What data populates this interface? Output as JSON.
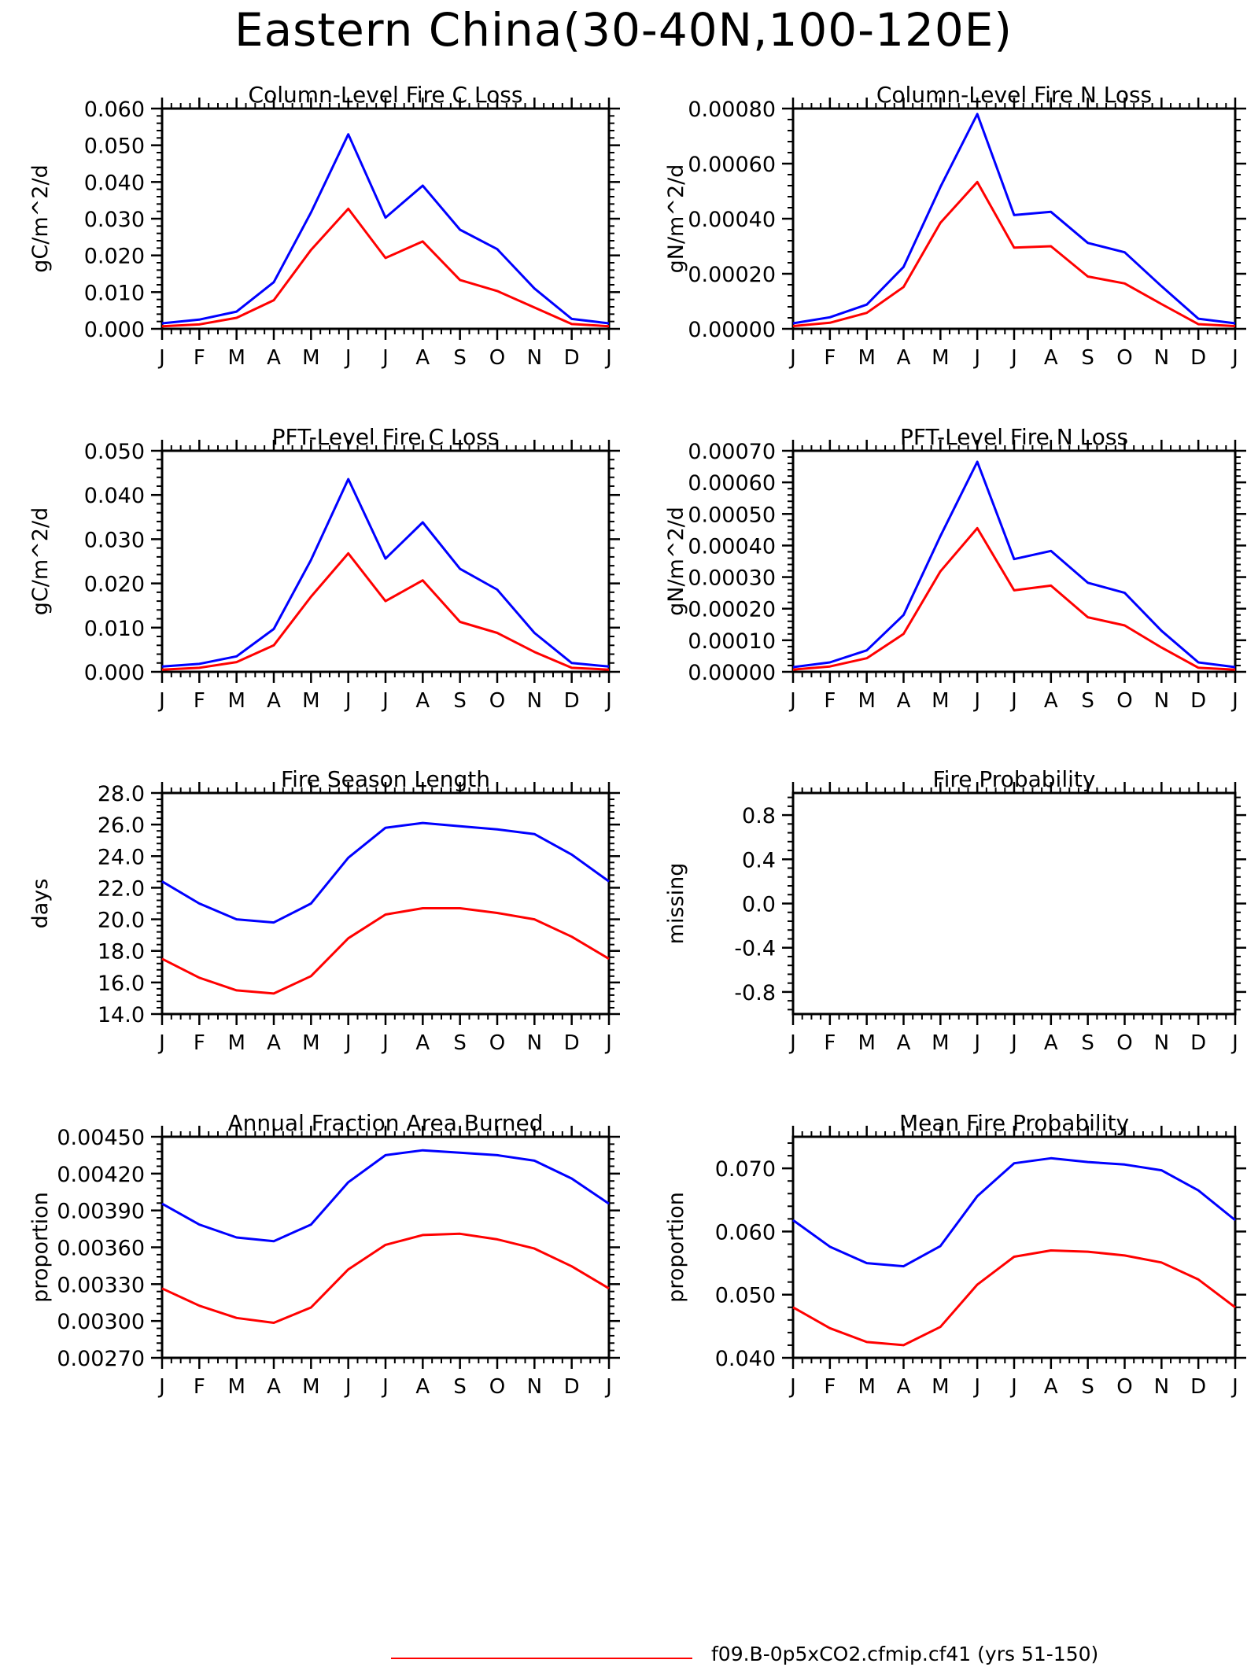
{
  "page_title": "Eastern China(30-40N,100-120E)",
  "legend": [
    {
      "label": "f09.B-0p5xCO2.cfmip.cf41 (yrs 51-150)",
      "color": "#ff0000"
    }
  ],
  "chart_data": [
    {
      "type": "line",
      "title": "Column-Level Fire C Loss",
      "ylabel": "gC/m^2/d",
      "x": [
        "J",
        "F",
        "M",
        "A",
        "M",
        "J",
        "J",
        "A",
        "S",
        "O",
        "N",
        "D",
        "J"
      ],
      "ylim": [
        0,
        0.06
      ],
      "yticks": [
        "0.000",
        "0.010",
        "0.020",
        "0.030",
        "0.040",
        "0.050",
        "0.060"
      ],
      "series": [
        {
          "color": "#0000ff",
          "values": [
            0.0015,
            0.0025,
            0.0047,
            0.0127,
            0.0317,
            0.053,
            0.0303,
            0.039,
            0.027,
            0.0217,
            0.011,
            0.0027,
            0.0015
          ]
        },
        {
          "color": "#ff0000",
          "values": [
            0.0007,
            0.0012,
            0.003,
            0.0078,
            0.0215,
            0.0327,
            0.0193,
            0.0238,
            0.0133,
            0.0103,
            0.0058,
            0.0013,
            0.0007
          ]
        }
      ]
    },
    {
      "type": "line",
      "title": "Column-Level Fire N Loss",
      "ylabel": "gN/m^2/d",
      "x": [
        "J",
        "F",
        "M",
        "A",
        "M",
        "J",
        "J",
        "A",
        "S",
        "O",
        "N",
        "D",
        "J"
      ],
      "ylim": [
        0,
        0.0008
      ],
      "yticks": [
        "0.00000",
        "0.00020",
        "0.00040",
        "0.00060",
        "0.00080"
      ],
      "series": [
        {
          "color": "#0000ff",
          "values": [
            2e-05,
            4.2e-05,
            8.8e-05,
            0.000225,
            0.000515,
            0.00078,
            0.000413,
            0.000425,
            0.000312,
            0.000278,
            0.000155,
            3.7e-05,
            2e-05
          ]
        },
        {
          "color": "#ff0000",
          "values": [
            1e-05,
            2.2e-05,
            5.8e-05,
            0.000152,
            0.000385,
            0.000533,
            0.000295,
            0.0003,
            0.00019,
            0.000165,
            9e-05,
            1.7e-05,
            1e-05
          ]
        }
      ]
    },
    {
      "type": "line",
      "title": "PFT-Level Fire C Loss",
      "ylabel": "gC/m^2/d",
      "x": [
        "J",
        "F",
        "M",
        "A",
        "M",
        "J",
        "J",
        "A",
        "S",
        "O",
        "N",
        "D",
        "J"
      ],
      "ylim": [
        0,
        0.05
      ],
      "yticks": [
        "0.000",
        "0.010",
        "0.020",
        "0.030",
        "0.040",
        "0.050"
      ],
      "series": [
        {
          "color": "#0000ff",
          "values": [
            0.0012,
            0.0018,
            0.0035,
            0.0097,
            0.0253,
            0.0436,
            0.0256,
            0.0338,
            0.0233,
            0.0186,
            0.0088,
            0.002,
            0.0012
          ]
        },
        {
          "color": "#ff0000",
          "values": [
            0.0005,
            0.0009,
            0.0022,
            0.006,
            0.017,
            0.0268,
            0.016,
            0.0207,
            0.0113,
            0.0088,
            0.0045,
            0.0009,
            0.0005
          ]
        }
      ]
    },
    {
      "type": "line",
      "title": "PFT-Level Fire N Loss",
      "ylabel": "gN/m^2/d",
      "x": [
        "J",
        "F",
        "M",
        "A",
        "M",
        "J",
        "J",
        "A",
        "S",
        "O",
        "N",
        "D",
        "J"
      ],
      "ylim": [
        0,
        0.0007
      ],
      "yticks": [
        "0.00000",
        "0.00010",
        "0.00020",
        "0.00030",
        "0.00040",
        "0.00050",
        "0.00060",
        "0.00070"
      ],
      "series": [
        {
          "color": "#0000ff",
          "values": [
            1.5e-05,
            3e-05,
            6.8e-05,
            0.00018,
            0.00043,
            0.000665,
            0.000357,
            0.000383,
            0.000282,
            0.00025,
            0.00013,
            3e-05,
            1.5e-05
          ]
        },
        {
          "color": "#ff0000",
          "values": [
            7e-06,
            1.7e-05,
            4.3e-05,
            0.00012,
            0.000318,
            0.000455,
            0.000258,
            0.000273,
            0.000173,
            0.000147,
            7.7e-05,
            1.3e-05,
            7e-06
          ]
        }
      ]
    },
    {
      "type": "line",
      "title": "Fire Season Length",
      "ylabel": "days",
      "x": [
        "J",
        "F",
        "M",
        "A",
        "M",
        "J",
        "J",
        "A",
        "S",
        "O",
        "N",
        "D",
        "J"
      ],
      "ylim": [
        14,
        28
      ],
      "yticks": [
        "14.0",
        "16.0",
        "18.0",
        "20.0",
        "22.0",
        "24.0",
        "26.0",
        "28.0"
      ],
      "series": [
        {
          "color": "#0000ff",
          "values": [
            22.4,
            21.0,
            20.0,
            19.8,
            21.0,
            23.9,
            25.8,
            26.1,
            25.9,
            25.7,
            25.4,
            24.1,
            22.4
          ]
        },
        {
          "color": "#ff0000",
          "values": [
            17.5,
            16.3,
            15.5,
            15.3,
            16.4,
            18.8,
            20.3,
            20.7,
            20.7,
            20.4,
            20.0,
            18.9,
            17.5
          ]
        }
      ]
    },
    {
      "type": "line",
      "title": "Fire Probability",
      "ylabel": "missing",
      "x": [
        "J",
        "F",
        "M",
        "A",
        "M",
        "J",
        "J",
        "A",
        "S",
        "O",
        "N",
        "D",
        "J"
      ],
      "ylim": [
        -1,
        1
      ],
      "yticks": [
        "-0.8",
        "-0.4",
        "0.0",
        "0.4",
        "0.8"
      ],
      "ytick_values": [
        -0.8,
        -0.4,
        0,
        0.4,
        0.8
      ],
      "series": []
    },
    {
      "type": "line",
      "title": "Annual Fraction Area Burned",
      "ylabel": "proportion",
      "x": [
        "J",
        "F",
        "M",
        "A",
        "M",
        "J",
        "J",
        "A",
        "S",
        "O",
        "N",
        "D",
        "J"
      ],
      "ylim": [
        0.0027,
        0.0045
      ],
      "yticks": [
        "0.00270",
        "0.00300",
        "0.00330",
        "0.00360",
        "0.00390",
        "0.00420",
        "0.00450"
      ],
      "series": [
        {
          "color": "#0000ff",
          "values": [
            0.003955,
            0.003785,
            0.00368,
            0.00365,
            0.003785,
            0.00413,
            0.00435,
            0.00439,
            0.00437,
            0.00435,
            0.004305,
            0.00416,
            0.003955
          ]
        },
        {
          "color": "#ff0000",
          "values": [
            0.003265,
            0.003125,
            0.003025,
            0.002985,
            0.00311,
            0.00342,
            0.00362,
            0.0037,
            0.00371,
            0.003665,
            0.00359,
            0.003445,
            0.003265
          ]
        }
      ]
    },
    {
      "type": "line",
      "title": "Mean Fire Probability",
      "ylabel": "proportion",
      "x": [
        "J",
        "F",
        "M",
        "A",
        "M",
        "J",
        "J",
        "A",
        "S",
        "O",
        "N",
        "D",
        "J"
      ],
      "ylim": [
        0.04,
        0.075
      ],
      "yticks": [
        "0.040",
        "0.050",
        "0.060",
        "0.070"
      ],
      "ytick_values": [
        0.04,
        0.05,
        0.06,
        0.07
      ],
      "series": [
        {
          "color": "#0000ff",
          "values": [
            0.0618,
            0.0576,
            0.055,
            0.0545,
            0.0577,
            0.0656,
            0.0708,
            0.0716,
            0.071,
            0.0706,
            0.0697,
            0.0665,
            0.0618
          ]
        },
        {
          "color": "#ff0000",
          "values": [
            0.048,
            0.0447,
            0.0425,
            0.042,
            0.0449,
            0.0516,
            0.056,
            0.057,
            0.0568,
            0.0562,
            0.0551,
            0.0524,
            0.048
          ]
        }
      ]
    }
  ]
}
